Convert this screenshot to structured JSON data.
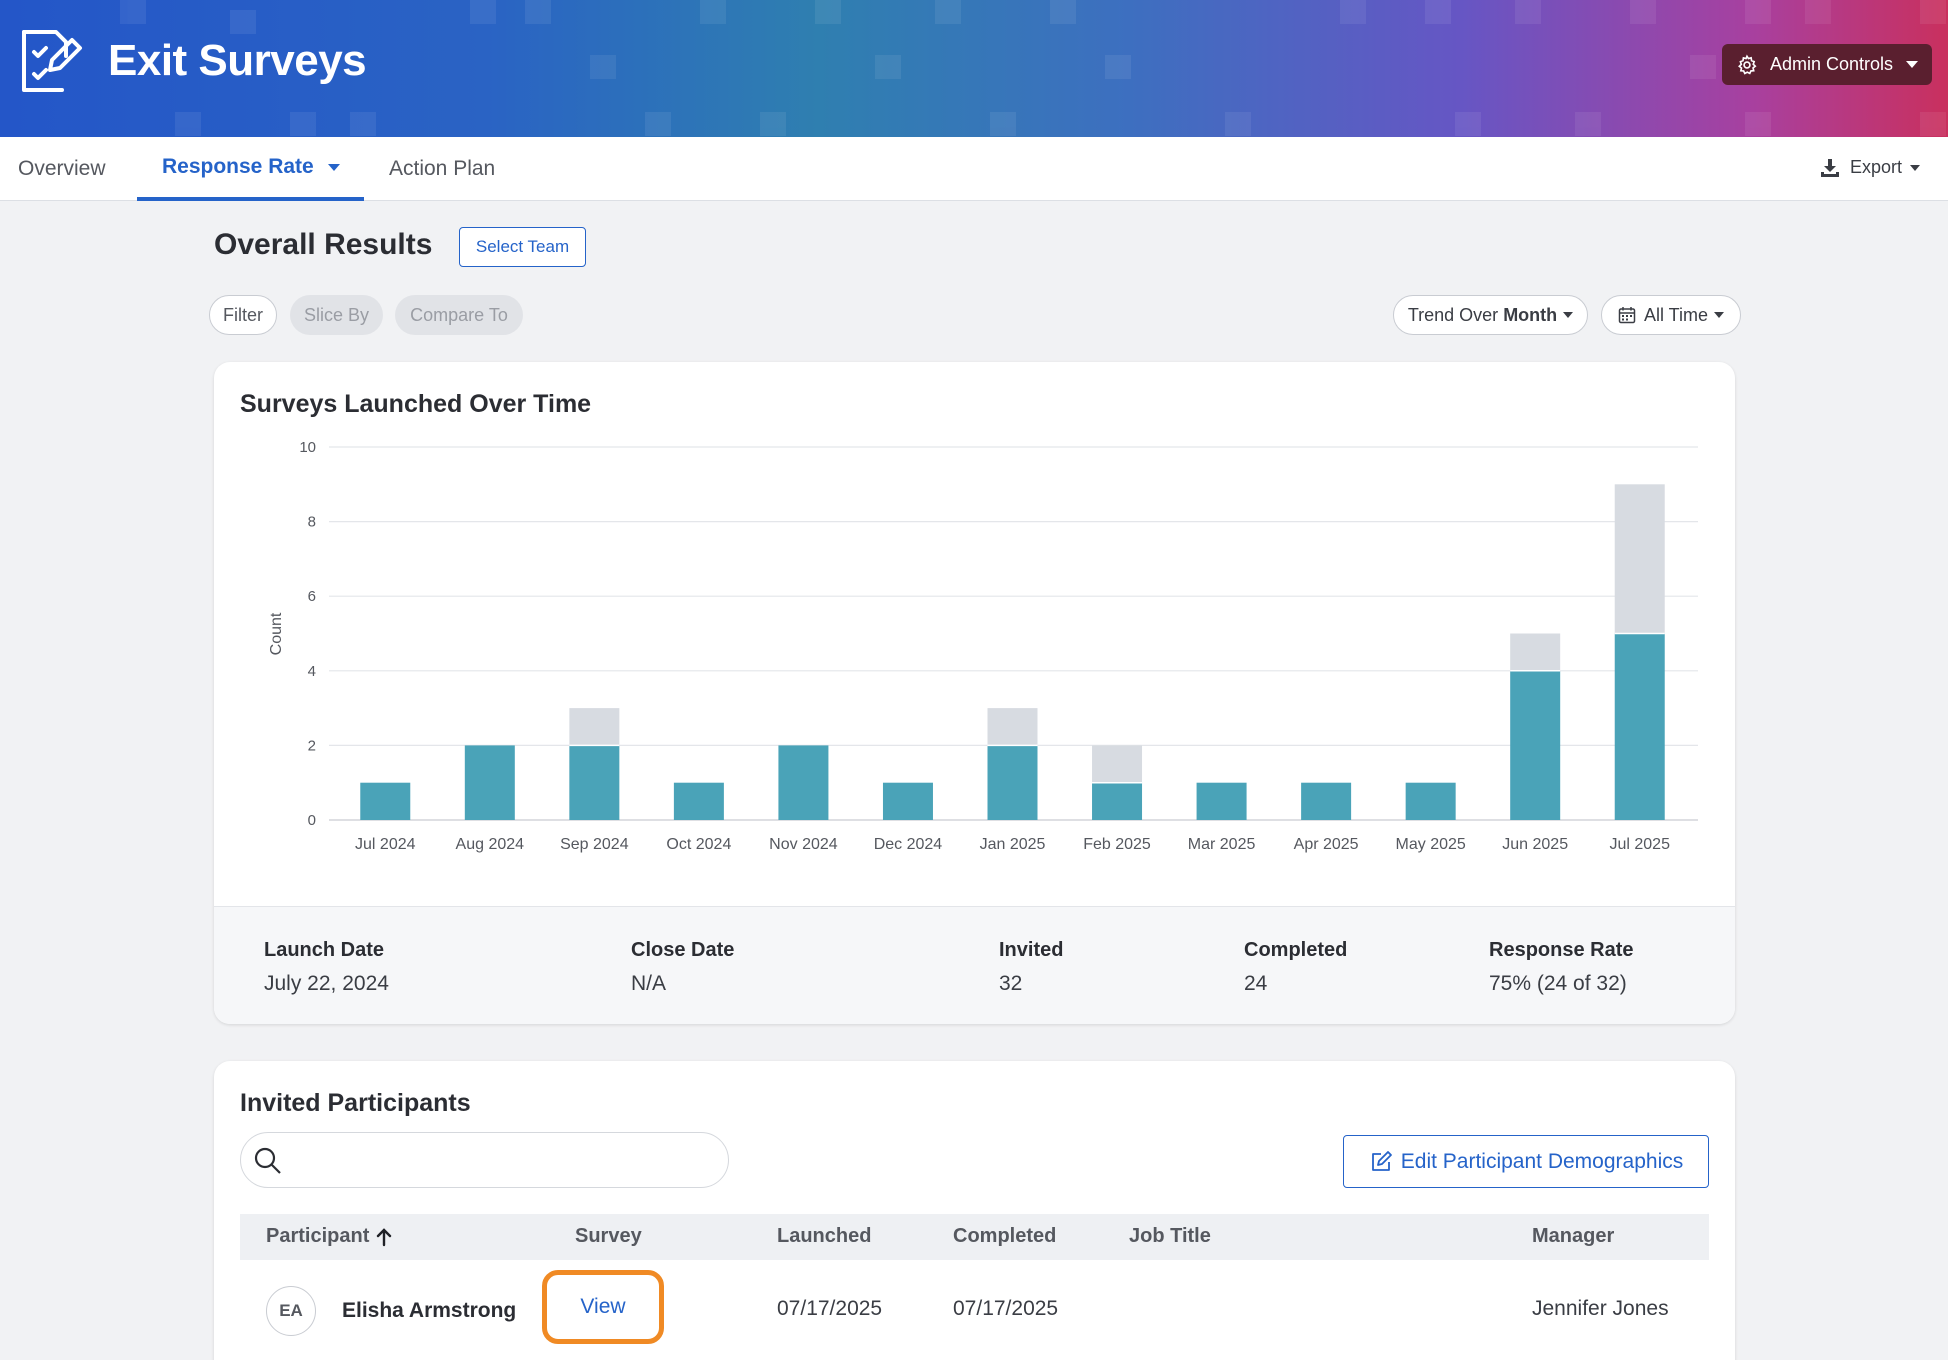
{
  "header": {
    "app_title": "Exit Surveys",
    "admin_label": "Admin Controls",
    "colors": {
      "brand_start": "#2456c8",
      "brand_end": "#c9305e",
      "admin_bg": "#5a1f2f"
    }
  },
  "tabs": [
    {
      "label": "Overview",
      "active": false
    },
    {
      "label": "Response Rate",
      "active": true
    },
    {
      "label": "Action Plan",
      "active": false
    }
  ],
  "export_label": "Export",
  "results": {
    "title": "Overall Results",
    "select_team": "Select Team",
    "filters": {
      "filter": "Filter",
      "slice_by": "Slice By",
      "compare_to": "Compare To",
      "trend_prefix": "Trend Over",
      "trend_value": "Month",
      "time_range": "All Time"
    }
  },
  "chart": {
    "title": "Surveys Launched Over Time",
    "ylabel": "Count"
  },
  "chart_data": {
    "type": "bar",
    "stacked": true,
    "categories": [
      "Jul 2024",
      "Aug 2024",
      "Sep 2024",
      "Oct 2024",
      "Nov 2024",
      "Dec 2024",
      "Jan 2025",
      "Feb 2025",
      "Mar 2025",
      "Apr 2025",
      "May 2025",
      "Jun 2025",
      "Jul 2025"
    ],
    "series": [
      {
        "values": [
          1,
          2,
          2,
          1,
          2,
          1,
          2,
          1,
          1,
          1,
          1,
          4,
          5
        ],
        "color": "#4aa3b8"
      },
      {
        "values": [
          0,
          0,
          1,
          0,
          0,
          0,
          1,
          1,
          0,
          0,
          0,
          1,
          4
        ],
        "color": "#d7dbe1"
      }
    ],
    "ylim": [
      0,
      10
    ],
    "yticks": [
      0,
      2,
      4,
      6,
      8,
      10
    ],
    "ylabel": "Count",
    "grid": true,
    "legend": "none"
  },
  "stats": [
    {
      "label": "Launch Date",
      "value": "July 22, 2024"
    },
    {
      "label": "Close Date",
      "value": "N/A"
    },
    {
      "label": "Invited",
      "value": "32"
    },
    {
      "label": "Completed",
      "value": "24"
    },
    {
      "label": "Response Rate",
      "value": "75% (24 of 32)"
    }
  ],
  "participants": {
    "title": "Invited Participants",
    "search_placeholder": "",
    "edit_button": "Edit Participant Demographics",
    "columns": [
      "Participant",
      "Survey",
      "Launched",
      "Completed",
      "Job Title",
      "Manager"
    ],
    "sort_icon": "arrow-up-icon",
    "rows": [
      {
        "initials": "EA",
        "name": "Elisha Armstrong",
        "survey": "View",
        "launched": "07/17/2025",
        "completed": "07/17/2025",
        "job_title": "",
        "manager": "Jennifer Jones"
      }
    ]
  }
}
